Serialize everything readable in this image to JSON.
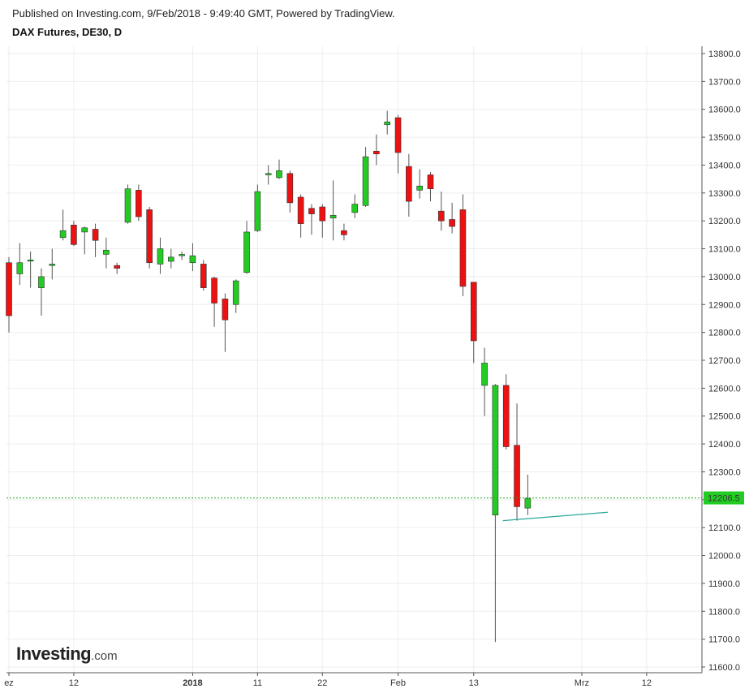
{
  "header": {
    "published": "Published on Investing.com, 9/Feb/2018 - 9:49:40 GMT, Powered by TradingView.",
    "title": "DAX Futures, DE30, D"
  },
  "logo": {
    "main": "Investing",
    "suffix": ".com"
  },
  "colors": {
    "up": "#22cc22",
    "down": "#ee1111",
    "wick": "#555555",
    "grid": "#eeeeee",
    "current_price_line": "#22aa22",
    "current_price_badge": "#22cc22",
    "trend_line": "#26a69a"
  },
  "chart_data": {
    "type": "candlestick",
    "y_axis": {
      "min": 11600,
      "max": 13800,
      "step": 100,
      "tick_labels": [
        "13800.0",
        "13700.0",
        "13600.0",
        "13500.0",
        "13400.0",
        "13300.0",
        "13200.0",
        "13100.0",
        "13000.0",
        "12900.0",
        "12800.0",
        "12700.0",
        "12600.0",
        "12500.0",
        "12400.0",
        "12300.0",
        "12200.0",
        "12100.0",
        "12000.0",
        "11900.0",
        "11800.0",
        "11700.0",
        "11600.0"
      ]
    },
    "x_axis": {
      "ticks": [
        {
          "label": "ez",
          "index": 0,
          "bold": false
        },
        {
          "label": "12",
          "index": 6,
          "bold": false
        },
        {
          "label": "2018",
          "index": 17,
          "bold": true
        },
        {
          "label": "11",
          "index": 23,
          "bold": false
        },
        {
          "label": "22",
          "index": 29,
          "bold": false
        },
        {
          "label": "Feb",
          "index": 36,
          "bold": false
        },
        {
          "label": "13",
          "index": 43,
          "bold": false
        },
        {
          "label": "Mrz",
          "index": 53,
          "bold": false
        },
        {
          "label": "12",
          "index": 59,
          "bold": false
        }
      ]
    },
    "candles": [
      {
        "o": 13050,
        "h": 13070,
        "l": 12800,
        "c": 12860
      },
      {
        "o": 13010,
        "h": 13120,
        "l": 12970,
        "c": 13050
      },
      {
        "o": 13060,
        "h": 13090,
        "l": 12960,
        "c": 13060
      },
      {
        "o": 12960,
        "h": 13030,
        "l": 12860,
        "c": 13000
      },
      {
        "o": 13040,
        "h": 13100,
        "l": 12990,
        "c": 13045
      },
      {
        "o": 13140,
        "h": 13240,
        "l": 13130,
        "c": 13165
      },
      {
        "o": 13185,
        "h": 13200,
        "l": 13110,
        "c": 13115
      },
      {
        "o": 13160,
        "h": 13180,
        "l": 13080,
        "c": 13175
      },
      {
        "o": 13170,
        "h": 13190,
        "l": 13070,
        "c": 13130
      },
      {
        "o": 13080,
        "h": 13140,
        "l": 13030,
        "c": 13095
      },
      {
        "o": 13040,
        "h": 13050,
        "l": 13010,
        "c": 13030
      },
      {
        "o": 13195,
        "h": 13330,
        "l": 13190,
        "c": 13315
      },
      {
        "o": 13310,
        "h": 13330,
        "l": 13200,
        "c": 13215
      },
      {
        "o": 13240,
        "h": 13250,
        "l": 13030,
        "c": 13050
      },
      {
        "o": 13045,
        "h": 13140,
        "l": 13010,
        "c": 13100
      },
      {
        "o": 13055,
        "h": 13100,
        "l": 13030,
        "c": 13070
      },
      {
        "o": 13075,
        "h": 13090,
        "l": 13060,
        "c": 13080
      },
      {
        "o": 13050,
        "h": 13120,
        "l": 13020,
        "c": 13075
      },
      {
        "o": 13045,
        "h": 13060,
        "l": 12950,
        "c": 12960
      },
      {
        "o": 12995,
        "h": 13000,
        "l": 12820,
        "c": 12905
      },
      {
        "o": 12920,
        "h": 12940,
        "l": 12730,
        "c": 12845
      },
      {
        "o": 12900,
        "h": 12990,
        "l": 12870,
        "c": 12985
      },
      {
        "o": 13015,
        "h": 13200,
        "l": 13010,
        "c": 13160
      },
      {
        "o": 13165,
        "h": 13330,
        "l": 13160,
        "c": 13305
      },
      {
        "o": 13365,
        "h": 13400,
        "l": 13330,
        "c": 13370
      },
      {
        "o": 13355,
        "h": 13420,
        "l": 13350,
        "c": 13380
      },
      {
        "o": 13370,
        "h": 13380,
        "l": 13230,
        "c": 13265
      },
      {
        "o": 13285,
        "h": 13295,
        "l": 13140,
        "c": 13190
      },
      {
        "o": 13245,
        "h": 13260,
        "l": 13150,
        "c": 13225
      },
      {
        "o": 13250,
        "h": 13260,
        "l": 13140,
        "c": 13200
      },
      {
        "o": 13210,
        "h": 13345,
        "l": 13130,
        "c": 13220
      },
      {
        "o": 13165,
        "h": 13190,
        "l": 13130,
        "c": 13150
      },
      {
        "o": 13230,
        "h": 13295,
        "l": 13210,
        "c": 13260
      },
      {
        "o": 13255,
        "h": 13465,
        "l": 13250,
        "c": 13430
      },
      {
        "o": 13450,
        "h": 13510,
        "l": 13400,
        "c": 13440
      },
      {
        "o": 13545,
        "h": 13595,
        "l": 13510,
        "c": 13555
      },
      {
        "o": 13570,
        "h": 13580,
        "l": 13370,
        "c": 13445
      },
      {
        "o": 13395,
        "h": 13440,
        "l": 13215,
        "c": 13270
      },
      {
        "o": 13310,
        "h": 13385,
        "l": 13280,
        "c": 13325
      },
      {
        "o": 13365,
        "h": 13375,
        "l": 13270,
        "c": 13315
      },
      {
        "o": 13235,
        "h": 13305,
        "l": 13165,
        "c": 13200
      },
      {
        "o": 13205,
        "h": 13265,
        "l": 13155,
        "c": 13180
      },
      {
        "o": 13240,
        "h": 13295,
        "l": 12930,
        "c": 12965
      },
      {
        "o": 12980,
        "h": 12980,
        "l": 12690,
        "c": 12770
      },
      {
        "o": 12610,
        "h": 12745,
        "l": 12500,
        "c": 12690
      },
      {
        "o": 12145,
        "h": 12615,
        "l": 11690,
        "c": 12610
      },
      {
        "o": 12610,
        "h": 12650,
        "l": 12380,
        "c": 12390
      },
      {
        "o": 12395,
        "h": 12545,
        "l": 12125,
        "c": 12175
      },
      {
        "o": 12170,
        "h": 12290,
        "l": 12145,
        "c": 12205
      }
    ],
    "trend_line": {
      "from": {
        "index": 45.7,
        "y": 12125
      },
      "to": {
        "index": 55.4,
        "y": 12155
      }
    },
    "current_price": 12206.5,
    "current_price_label": "12206.5"
  }
}
